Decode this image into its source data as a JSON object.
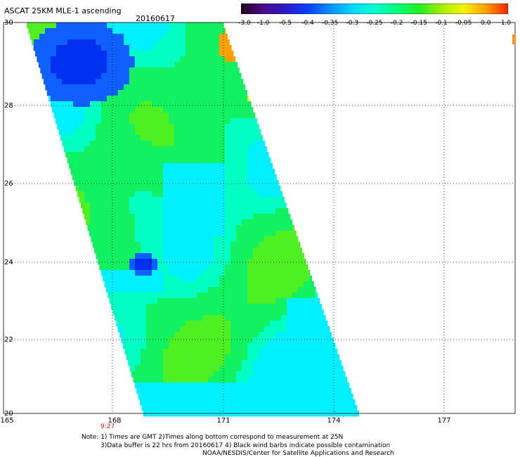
{
  "header": {
    "title": "ASCAT 25KM MLE-1 ascending",
    "date": "20160617"
  },
  "colorbar": {
    "labels": [
      "-3.0",
      "-1.0",
      "-0.5",
      "-0.4",
      "-0.35",
      "-0.3",
      "-0.25",
      "-0.2",
      "-0.15",
      "-0.1",
      "-0.05",
      "0.0",
      "1.0"
    ],
    "colors": [
      "#200020",
      "#4a0a8a",
      "#2a1acc",
      "#0a40ff",
      "#0a90ff",
      "#00d8ff",
      "#00ffd0",
      "#00ff7a",
      "#20f020",
      "#a0f000",
      "#f4f400",
      "#ffa000",
      "#ff2000"
    ]
  },
  "axes": {
    "lat_labels": [
      "30",
      "28",
      "26",
      "24",
      "22",
      "20"
    ],
    "lon_labels": [
      "165",
      "168",
      "171",
      "174",
      "177"
    ],
    "lat_range": [
      20,
      30
    ],
    "lon_range": [
      165,
      180
    ],
    "grid": "dotted"
  },
  "swath_time": "9:27",
  "notes": {
    "line1": "Note: 1) Times are GMT 2)Times along bottom correspond to measurement at 25N",
    "line2": "3)Data buffer is 22 hrs from 20160617 4) Black wind barbs indicate possible contamination",
    "line3": "NOAA/NESDIS/Center for Satellite Applications and Research"
  },
  "field": {
    "description_colors": {
      "deep_blue": "#0030f0",
      "mid_blue": "#1060ff",
      "cyan": "#00f0ff",
      "aqua": "#00ffc0",
      "green": "#10f060",
      "lime": "#50f020",
      "yellow": "#f0f000",
      "orange": "#ffa000"
    }
  }
}
